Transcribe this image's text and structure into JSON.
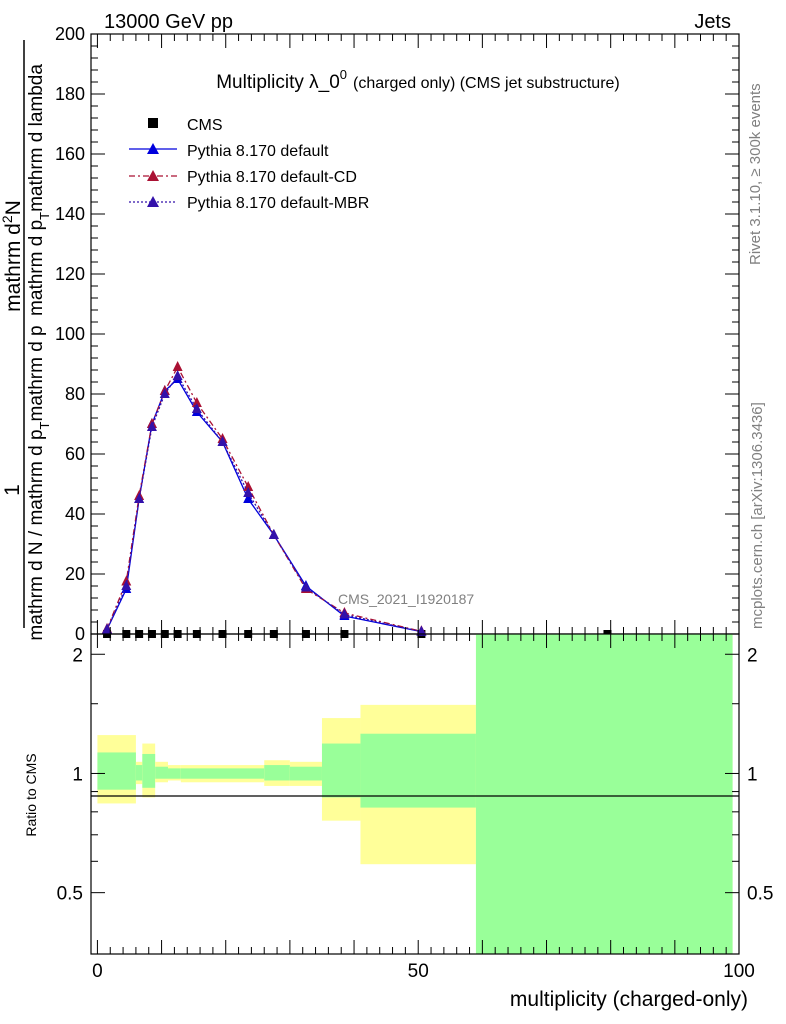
{
  "header": {
    "left": "13000 GeV pp",
    "right": "Jets"
  },
  "side": {
    "top": "Rivet 3.1.10, ≥ 300k events",
    "bottom": "mcplots.cern.ch [arXiv:1306.3436]"
  },
  "watermark": "CMS_2021_I1920187",
  "chart_data": [
    {
      "type": "line",
      "title_main": "Multiplicity λ_0",
      "title_sup": "0",
      "title_tail": "(charged only) (CMS jet substructure)",
      "ylabel_a": "1",
      "ylabel_b": "mathrm d N / mathrm d p",
      "ylabel_b_sub": "T",
      "ylabel_b_tail": "mathrm d p",
      "ylabel_c": "mathrm d",
      "ylabel_c_sup": "2",
      "ylabel_c_tail": "N",
      "ylabel_d": "mathrm d p",
      "ylabel_d_sub": "T",
      "ylabel_d_tail": "mathrm d lambda",
      "xlim": [
        -1,
        100
      ],
      "ylim": [
        0,
        200
      ],
      "yticks": [
        "0",
        "20",
        "40",
        "60",
        "80",
        "100",
        "120",
        "140",
        "160",
        "180",
        "200"
      ],
      "legend": [
        "CMS",
        "Pythia 8.170 default",
        "Pythia 8.170 default-CD",
        "Pythia 8.170 default-MBR"
      ],
      "series": [
        {
          "name": "CMS",
          "color": "#000000",
          "x": [
            1.5,
            4.5,
            6.5,
            8.5,
            10.5,
            12.5,
            15.5,
            19.5,
            23.5,
            27.5,
            32.5,
            38.5,
            50.5,
            79.5
          ],
          "y": [
            0,
            0,
            0,
            0,
            0,
            0,
            0,
            0,
            0,
            0,
            0,
            0,
            0,
            0
          ]
        },
        {
          "name": "Pythia 8.170 default",
          "color": "#0000dd",
          "x": [
            1.5,
            4.5,
            6.5,
            8.5,
            10.5,
            12.5,
            15.5,
            19.5,
            23.5,
            27.5,
            32.5,
            38.5,
            50.5
          ],
          "y": [
            1.5,
            15,
            45,
            70,
            81,
            85,
            74,
            64,
            45,
            33,
            16,
            6,
            0.8
          ]
        },
        {
          "name": "Pythia 8.170 default-CD",
          "color": "#aa1133",
          "x": [
            1.5,
            4.5,
            6.5,
            8.5,
            10.5,
            12.5,
            15.5,
            19.5,
            23.5,
            27.5,
            32.5,
            38.5,
            50.5
          ],
          "y": [
            1.7,
            17.5,
            46,
            70,
            81,
            89,
            77,
            65,
            49,
            33,
            15,
            7,
            0.9
          ]
        },
        {
          "name": "Pythia 8.170 default-MBR",
          "color": "#3311aa",
          "x": [
            1.5,
            4.5,
            6.5,
            8.5,
            10.5,
            12.5,
            15.5,
            19.5,
            23.5,
            27.5,
            32.5,
            38.5,
            50.5
          ],
          "y": [
            1.5,
            16,
            45,
            69,
            80,
            86,
            75,
            64,
            47,
            33,
            15.5,
            6.5,
            0.8
          ]
        }
      ]
    },
    {
      "type": "area",
      "ylabel": "Ratio to CMS",
      "xlabel": "multiplicity (charged-only)",
      "xlim": [
        -1,
        100
      ],
      "ylim": [
        0.35,
        2.25
      ],
      "xticks": [
        "0",
        "50",
        "100"
      ],
      "yticks": [
        "0.5",
        "1",
        "2"
      ],
      "bands": [
        {
          "x0": 0,
          "x1": 6,
          "stat": [
            0.91,
            1.13
          ],
          "total": [
            0.84,
            1.25
          ]
        },
        {
          "x0": 6,
          "x1": 7,
          "stat": [
            0.96,
            1.05
          ],
          "total": [
            0.94,
            1.07
          ]
        },
        {
          "x0": 7,
          "x1": 9,
          "stat": [
            0.92,
            1.12
          ],
          "total": [
            0.87,
            1.19
          ]
        },
        {
          "x0": 9,
          "x1": 11,
          "stat": [
            0.97,
            1.04
          ],
          "total": [
            0.95,
            1.07
          ]
        },
        {
          "x0": 11,
          "x1": 13,
          "stat": [
            0.97,
            1.03
          ],
          "total": [
            0.96,
            1.05
          ]
        },
        {
          "x0": 13,
          "x1": 26,
          "stat": [
            0.97,
            1.03
          ],
          "total": [
            0.95,
            1.05
          ]
        },
        {
          "x0": 26,
          "x1": 30,
          "stat": [
            0.96,
            1.05
          ],
          "total": [
            0.93,
            1.08
          ]
        },
        {
          "x0": 30,
          "x1": 35,
          "stat": [
            0.96,
            1.04
          ],
          "total": [
            0.93,
            1.07
          ]
        },
        {
          "x0": 35,
          "x1": 41,
          "stat": [
            0.87,
            1.19
          ],
          "total": [
            0.76,
            1.38
          ]
        },
        {
          "x0": 41,
          "x1": 59,
          "stat": [
            0.82,
            1.26
          ],
          "total": [
            0.59,
            1.49
          ]
        },
        {
          "x0": 59,
          "x1": 99,
          "stat": [
            0.35,
            2.25
          ],
          "total": [
            0.35,
            2.25
          ]
        }
      ]
    }
  ]
}
